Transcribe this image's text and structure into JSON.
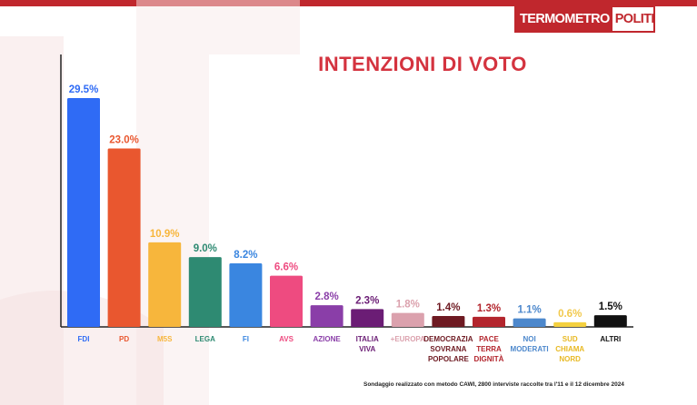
{
  "brand": {
    "logo_left": "TERMOMETRO",
    "logo_right": "POLITICO",
    "accent_color": "#c0272d"
  },
  "chart_data": {
    "type": "bar",
    "title": "INTENZIONI DI VOTO",
    "xlabel": "",
    "ylabel": "",
    "ylim": [
      0,
      31
    ],
    "grid": false,
    "categories": [
      [
        "FDI"
      ],
      [
        "PD"
      ],
      [
        "M5S"
      ],
      [
        "LEGA"
      ],
      [
        "FI"
      ],
      [
        "AVS"
      ],
      [
        "AZIONE"
      ],
      [
        "ITALIA",
        "VIVA"
      ],
      [
        "+EUROPA"
      ],
      [
        "DEMOCRAZIA",
        "SOVRANA",
        "POPOLARE"
      ],
      [
        "PACE",
        "TERRA",
        "DIGNITÀ"
      ],
      [
        "NOI",
        "MODERATI"
      ],
      [
        "SUD",
        "CHIAMA",
        "NORD"
      ],
      [
        "ALTRI"
      ]
    ],
    "values": [
      29.5,
      23.0,
      10.9,
      9.0,
      8.2,
      6.6,
      2.8,
      2.3,
      1.8,
      1.4,
      1.3,
      1.1,
      0.6,
      1.5
    ],
    "value_labels": [
      "29.5%",
      "23.0%",
      "10.9%",
      "9.0%",
      "8.2%",
      "6.6%",
      "2.8%",
      "2.3%",
      "1.8%",
      "1.4%",
      "1.3%",
      "1.1%",
      "0.6%",
      "1.5%"
    ],
    "colors": [
      "#2f6bf5",
      "#e9572f",
      "#f7b63c",
      "#2e8a72",
      "#3a86e0",
      "#ee4b80",
      "#8a3ea8",
      "#6b1d75",
      "#dba1ad",
      "#6e1a22",
      "#b3252d",
      "#4d88cc",
      "#f4d03f",
      "#111111"
    ],
    "footnote": "Sondaggio realizzato con metodo CAWI, 2800 interviste raccolte tra l'11 e il 12 dicembre 2024"
  }
}
